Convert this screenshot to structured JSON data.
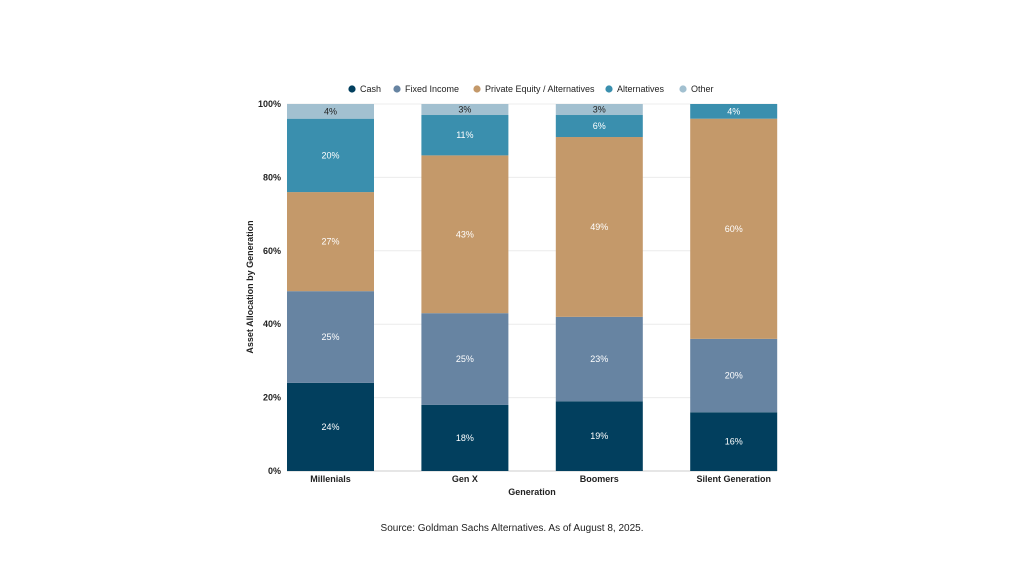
{
  "chart_data": {
    "type": "bar",
    "stacked": true,
    "categories": [
      "Millenials",
      "Gen X",
      "Boomers",
      "Silent Generation"
    ],
    "series": [
      {
        "name": "Cash",
        "color": "#023f5e",
        "values": [
          24,
          18,
          19,
          16
        ]
      },
      {
        "name": "Fixed Income",
        "color": "#6784a2",
        "values": [
          25,
          25,
          23,
          20
        ]
      },
      {
        "name": "Private Equity / Alternatives",
        "color": "#c4996a",
        "values": [
          27,
          43,
          49,
          60
        ]
      },
      {
        "name": "Alternatives",
        "color": "#3a8fae",
        "values": [
          20,
          11,
          6,
          4
        ]
      },
      {
        "name": "Other",
        "color": "#a2c0d0",
        "values": [
          4,
          3,
          3,
          0
        ]
      }
    ],
    "xlabel": "Generation",
    "ylabel": "Asset Allocation by Generation",
    "ylim": [
      0,
      100
    ],
    "yticks": [
      "0%",
      "20%",
      "40%",
      "60%",
      "80%",
      "100%"
    ],
    "grid": true,
    "legend_position": "top",
    "data_label_suffix": "%"
  },
  "source": "Source: Goldman Sachs Alternatives. As of August 8, 2025."
}
